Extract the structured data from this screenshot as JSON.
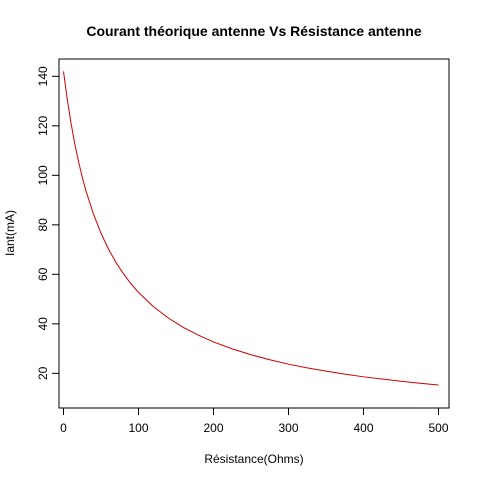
{
  "chart_data": {
    "type": "line",
    "title": "Courant théorique antenne Vs Résistance antenne",
    "xlabel": "Résistance(Ohms)",
    "ylabel": "Iant(mA)",
    "xlim": [
      -6,
      514
    ],
    "ylim": [
      6,
      147
    ],
    "x_ticks": [
      0,
      100,
      200,
      300,
      400,
      500
    ],
    "y_ticks": [
      20,
      40,
      60,
      80,
      100,
      120,
      140
    ],
    "grid": false,
    "legend": "none",
    "series": [
      {
        "color": "#cc0000",
        "x": [
          0,
          5,
          10,
          15,
          20,
          25,
          30,
          40,
          50,
          60,
          70,
          80,
          90,
          100,
          120,
          140,
          160,
          180,
          200,
          225,
          250,
          275,
          300,
          325,
          350,
          375,
          400,
          425,
          450,
          475,
          500
        ],
        "y": [
          142,
          130.7,
          121.1,
          112.8,
          105.6,
          99.3,
          93.7,
          84.3,
          76.6,
          70.2,
          64.8,
          60.2,
          56.2,
          52.7,
          46.9,
          42.3,
          38.5,
          35.4,
          32.7,
          29.9,
          27.5,
          25.5,
          23.7,
          22.2,
          20.9,
          19.7,
          18.6,
          17.7,
          16.8,
          16.0,
          15.3
        ]
      }
    ]
  }
}
